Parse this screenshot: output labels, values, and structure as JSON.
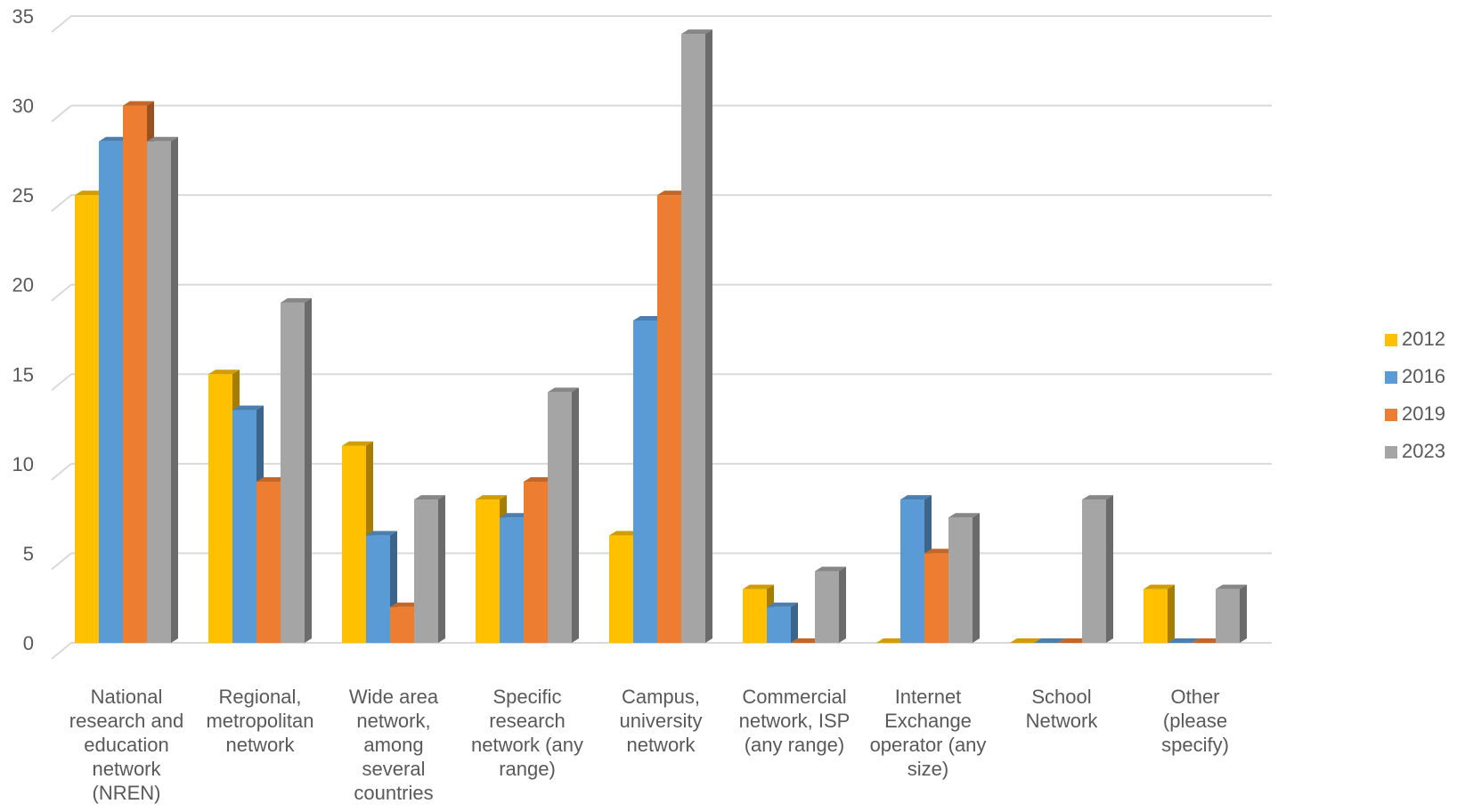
{
  "chart_data": {
    "type": "bar",
    "three_d": true,
    "title": "",
    "xlabel": "",
    "ylabel": "",
    "ylim": [
      0,
      35
    ],
    "yticks": [
      0,
      5,
      10,
      15,
      20,
      25,
      30,
      35
    ],
    "grid": true,
    "legend_position": "right",
    "categories": [
      [
        "National",
        "research and",
        "education",
        "network",
        "(NREN)"
      ],
      [
        "Regional,",
        "metropolitan",
        "network"
      ],
      [
        "Wide area",
        "network,",
        "among",
        "several",
        "countries"
      ],
      [
        "Specific",
        "research",
        "network (any",
        "range)"
      ],
      [
        "Campus,",
        "university",
        "network"
      ],
      [
        "Commercial",
        "network, ISP",
        "(any range)"
      ],
      [
        "Internet",
        "Exchange",
        "operator (any",
        "size)"
      ],
      [
        "School",
        "Network"
      ],
      [
        "Other",
        "(please",
        "specify)"
      ]
    ],
    "series": [
      {
        "name": "2012",
        "color": "#FFC000",
        "values": [
          25,
          15,
          11,
          8,
          6,
          3,
          0,
          0,
          3
        ]
      },
      {
        "name": "2016",
        "color": "#5B9BD5",
        "values": [
          28,
          13,
          6,
          7,
          18,
          2,
          8,
          0,
          0
        ]
      },
      {
        "name": "2019",
        "color": "#ED7D31",
        "values": [
          30,
          9,
          2,
          9,
          25,
          0,
          5,
          0,
          0
        ]
      },
      {
        "name": "2023",
        "color": "#A5A5A5",
        "values": [
          28,
          19,
          8,
          14,
          34,
          4,
          7,
          8,
          3
        ]
      }
    ]
  }
}
